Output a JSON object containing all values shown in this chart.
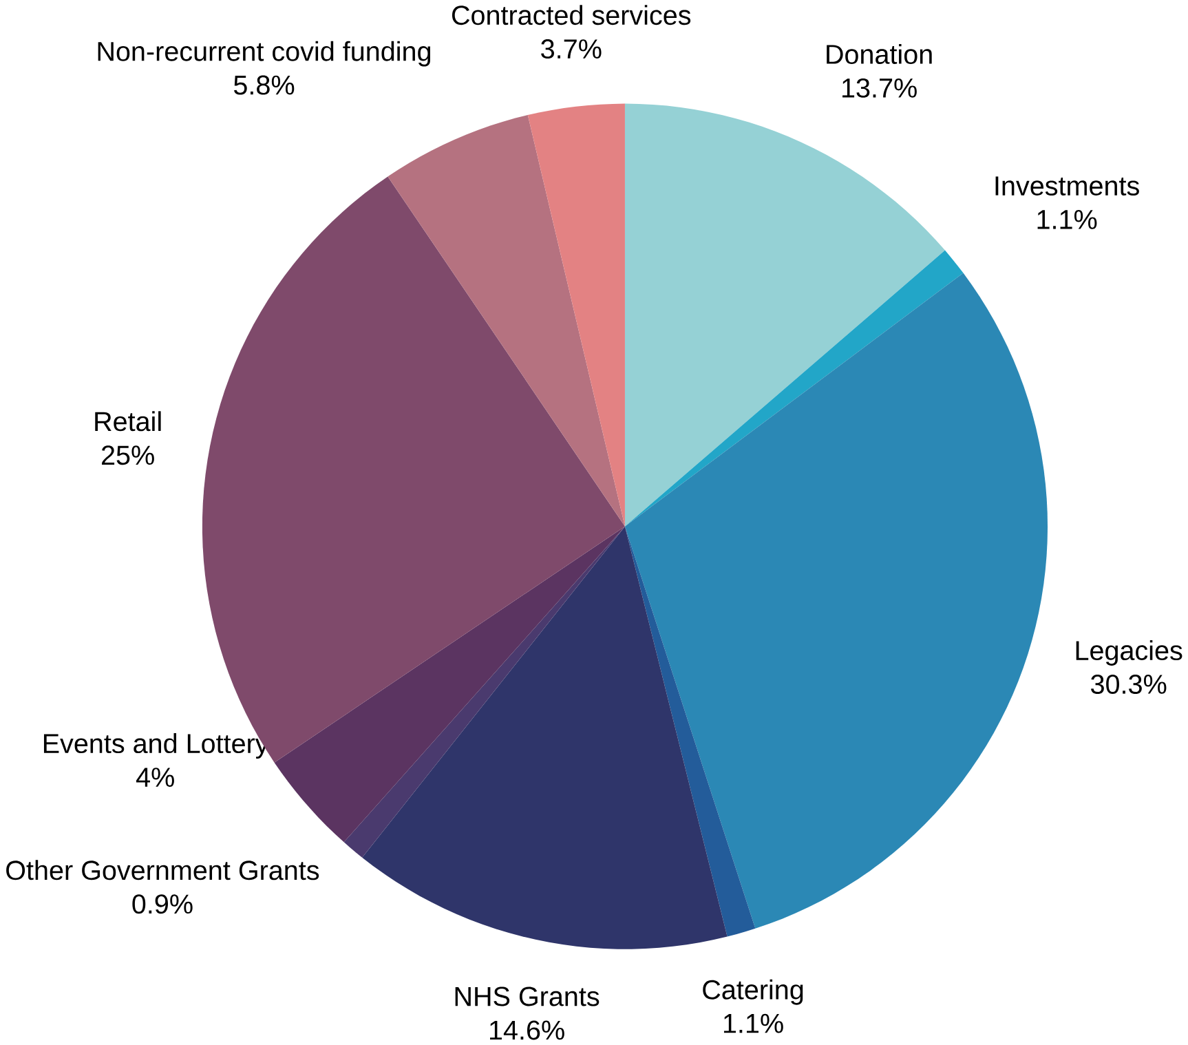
{
  "chart_data": {
    "type": "pie",
    "categories": [
      "Donation",
      "Investments",
      "Legacies",
      "Catering",
      "NHS Grants",
      "Other Government Grants",
      "Events and Lottery",
      "Retail",
      "Non-recurrent covid funding",
      "Contracted services"
    ],
    "values": [
      13.7,
      1.1,
      30.3,
      1.1,
      14.6,
      0.9,
      4,
      25,
      5.8,
      3.7
    ],
    "value_labels": [
      "13.7%",
      "1.1%",
      "30.3%",
      "1.1%",
      "14.6%",
      "0.9%",
      "4%",
      "25%",
      "5.8%",
      "3.7%"
    ],
    "colors": [
      "#95d1d5",
      "#22a6c8",
      "#2b88b5",
      "#235c9a",
      "#2f356a",
      "#4a3a6e",
      "#5b3461",
      "#7f4a6b",
      "#b57280",
      "#e38283"
    ]
  }
}
